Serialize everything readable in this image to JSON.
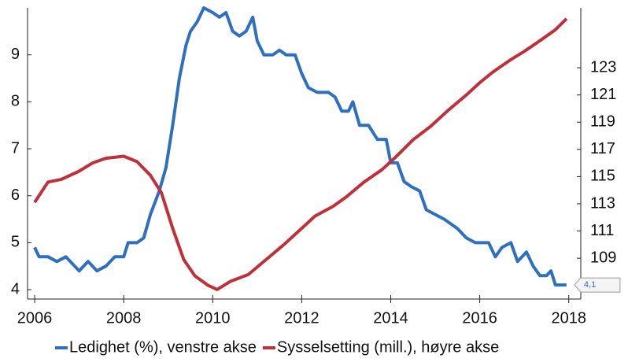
{
  "chart_data": {
    "type": "line",
    "xlim": [
      2005.84,
      2018.27
    ],
    "xticks": [
      2006,
      2008,
      2010,
      2012,
      2014,
      2016,
      2018
    ],
    "ylim": [
      3.8,
      10.0
    ],
    "yticks": [
      4,
      5,
      6,
      7,
      8,
      9
    ],
    "y2lim": [
      106,
      127.4
    ],
    "y2ticks": [
      107,
      109,
      111,
      113,
      115,
      117,
      119,
      121,
      123
    ],
    "legend": "bottom",
    "annotation": "4,1",
    "series": [
      {
        "name": "Ledighet (%), venstre akse",
        "color": "#2e6fbf",
        "x": [
          2006.0,
          2006.1,
          2006.3,
          2006.5,
          2006.7,
          2006.9,
          2007.0,
          2007.2,
          2007.4,
          2007.6,
          2007.8,
          2008.0,
          2008.1,
          2008.3,
          2008.45,
          2008.6,
          2008.8,
          2008.95,
          2009.1,
          2009.25,
          2009.4,
          2009.5,
          2009.65,
          2009.8,
          2010.0,
          2010.15,
          2010.3,
          2010.45,
          2010.6,
          2010.75,
          2010.9,
          2011.0,
          2011.15,
          2011.35,
          2011.5,
          2011.65,
          2011.85,
          2012.0,
          2012.15,
          2012.35,
          2012.6,
          2012.75,
          2012.9,
          2013.05,
          2013.15,
          2013.3,
          2013.5,
          2013.7,
          2013.9,
          2014.0,
          2014.15,
          2014.3,
          2014.45,
          2014.65,
          2014.8,
          2015.0,
          2015.2,
          2015.35,
          2015.5,
          2015.7,
          2015.9,
          2016.2,
          2016.35,
          2016.5,
          2016.7,
          2016.85,
          2017.05,
          2017.2,
          2017.35,
          2017.5,
          2017.6,
          2017.7,
          2017.95
        ],
        "values": [
          4.9,
          4.7,
          4.7,
          4.6,
          4.7,
          4.5,
          4.4,
          4.6,
          4.4,
          4.5,
          4.7,
          4.7,
          5.0,
          5.0,
          5.1,
          5.6,
          6.1,
          6.6,
          7.5,
          8.5,
          9.2,
          9.5,
          9.7,
          10.0,
          9.9,
          9.8,
          9.9,
          9.5,
          9.4,
          9.5,
          9.8,
          9.3,
          9.0,
          9.0,
          9.1,
          9.0,
          9.0,
          8.6,
          8.3,
          8.2,
          8.2,
          8.1,
          7.8,
          7.8,
          8.0,
          7.5,
          7.5,
          7.2,
          7.2,
          6.7,
          6.7,
          6.3,
          6.2,
          6.1,
          5.7,
          5.6,
          5.5,
          5.4,
          5.3,
          5.1,
          5.0,
          5.0,
          4.7,
          4.9,
          5.0,
          4.6,
          4.8,
          4.5,
          4.3,
          4.3,
          4.4,
          4.1,
          4.1
        ]
      },
      {
        "name": "Sysselsetting (mill.), høyre akse",
        "color": "#c0303a",
        "axis": "y2",
        "x": [
          2006.0,
          2006.3,
          2006.6,
          2007.0,
          2007.3,
          2007.6,
          2008.0,
          2008.3,
          2008.6,
          2008.85,
          2009.1,
          2009.35,
          2009.6,
          2009.9,
          2010.1,
          2010.4,
          2010.8,
          2011.2,
          2011.6,
          2012.0,
          2012.3,
          2012.7,
          2013.0,
          2013.4,
          2013.8,
          2014.1,
          2014.5,
          2014.9,
          2015.3,
          2015.7,
          2016.0,
          2016.3,
          2016.7,
          2017.0,
          2017.4,
          2017.7,
          2017.95
        ],
        "values": [
          113.1,
          114.6,
          114.8,
          115.4,
          116.0,
          116.35,
          116.5,
          116.1,
          115.1,
          113.8,
          111.2,
          108.9,
          107.7,
          107.0,
          106.7,
          107.3,
          107.8,
          108.9,
          110.0,
          111.2,
          112.1,
          112.8,
          113.5,
          114.6,
          115.5,
          116.4,
          117.7,
          118.7,
          119.9,
          121.0,
          121.9,
          122.7,
          123.6,
          124.2,
          125.1,
          125.8,
          126.6
        ]
      }
    ]
  }
}
